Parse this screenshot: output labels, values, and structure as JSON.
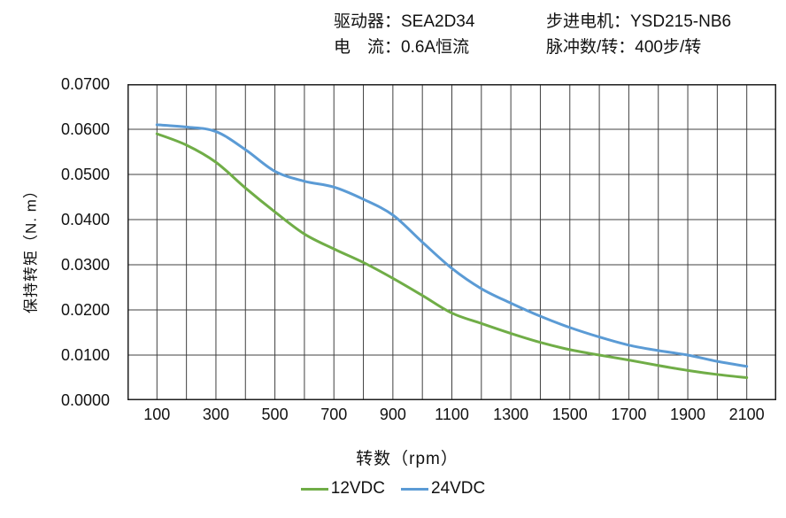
{
  "header": {
    "left_lines": [
      "驱动器：SEA2D34",
      "电　流：0.6A恒流"
    ],
    "right_lines": [
      "步进电机：YSD215-NB6",
      "脉冲数/转：400步/转"
    ]
  },
  "chart_data": {
    "type": "line",
    "title": "",
    "xlabel": "转数（rpm）",
    "ylabel": "保持转矩（N. m）",
    "xlim": [
      0,
      2200
    ],
    "ylim": [
      0,
      0.07
    ],
    "grid": "on",
    "grid_color": "#404040",
    "frame_color": "#1f1f1f",
    "legend_position": "bottom-center",
    "x": [
      100,
      200,
      300,
      400,
      500,
      600,
      700,
      800,
      900,
      1000,
      1100,
      1200,
      1300,
      1400,
      1500,
      1600,
      1700,
      1800,
      1900,
      2000,
      2100
    ],
    "series": [
      {
        "name": "12VDC",
        "color": "#70AD47",
        "values": [
          0.059,
          0.0565,
          0.0527,
          0.047,
          0.0417,
          0.0368,
          0.0335,
          0.0305,
          0.027,
          0.0232,
          0.0193,
          0.017,
          0.0148,
          0.0128,
          0.0112,
          0.01,
          0.0089,
          0.0077,
          0.0066,
          0.0057,
          0.005
        ]
      },
      {
        "name": "24VDC",
        "color": "#5B9BD5",
        "values": [
          0.061,
          0.0605,
          0.0595,
          0.0555,
          0.0507,
          0.0485,
          0.0472,
          0.0445,
          0.041,
          0.035,
          0.0292,
          0.0247,
          0.0215,
          0.0186,
          0.0161,
          0.014,
          0.0122,
          0.011,
          0.01,
          0.0086,
          0.0075
        ]
      }
    ],
    "x_tick_labels": [
      "100",
      "300",
      "500",
      "700",
      "900",
      "1100",
      "1300",
      "1500",
      "1700",
      "1900",
      "2100"
    ],
    "y_tick_labels": [
      "0.0000",
      "0.0100",
      "0.0200",
      "0.0300",
      "0.0400",
      "0.0500",
      "0.0600",
      "0.0700"
    ],
    "y_tick_step": 0.01
  }
}
